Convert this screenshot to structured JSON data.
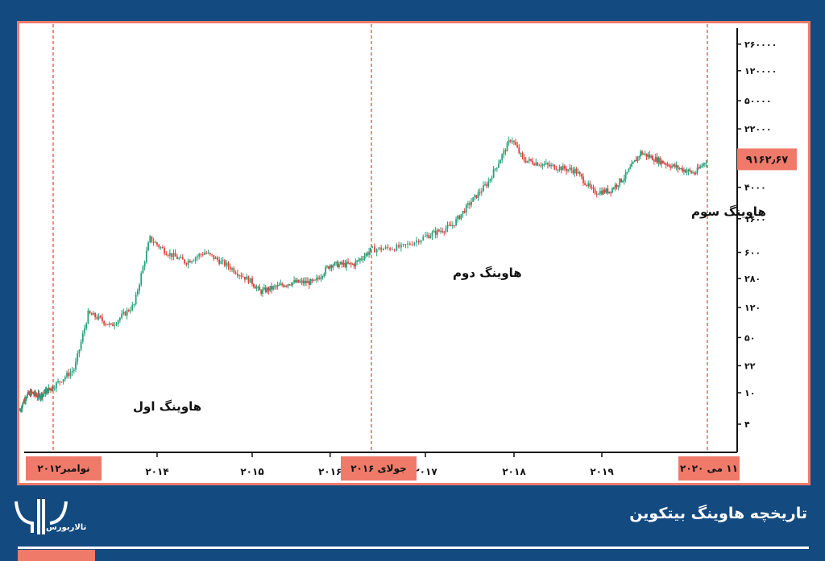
{
  "chart_data": {
    "type": "candlestick",
    "yscale": "log",
    "y_ticks": [
      "۲۶۰۰۰۰",
      "۱۲۰۰۰۰",
      "۵۰۰۰۰",
      "۲۲۰۰۰",
      "۴۰۰۰",
      "۱۶۰۰",
      "۶۰۰",
      "۲۸۰",
      "۱۲۰",
      "۵۰",
      "۲۲",
      "۱۰",
      "۴"
    ],
    "y_tick_values": [
      260000,
      120000,
      50000,
      22000,
      4000,
      1600,
      600,
      280,
      120,
      50,
      22,
      10,
      4
    ],
    "x_ticks": [
      "۲۰۱۴",
      "۲۰۱۵",
      "۲۰۱۶",
      "۲۰۱۷",
      "۲۰۱۸",
      "۲۰۱۹"
    ],
    "x_tick_values": [
      2014,
      2015,
      2016,
      2017,
      2018,
      2019
    ],
    "last_price_label": "۹۱۶۲٫۶۷",
    "last_price": 9162.67,
    "halvings": [
      {
        "date": 2012.87,
        "date_label": "نوامبر۲۰۱۲",
        "annotation": "هاوینگ اول"
      },
      {
        "date": 2016.53,
        "date_label": "جولای ۲۰۱۶",
        "annotation": "هاوینگ دوم"
      },
      {
        "date": 2020.36,
        "date_label": "۱۱ می ۲۰۲۰",
        "annotation": "هاوینگ سوم"
      }
    ],
    "series": [
      [
        2012.0,
        6
      ],
      [
        2012.15,
        9
      ],
      [
        2012.3,
        10
      ],
      [
        2012.5,
        9
      ],
      [
        2012.87,
        12
      ],
      [
        2013.1,
        20
      ],
      [
        2013.25,
        100
      ],
      [
        2013.35,
        90
      ],
      [
        2013.5,
        70
      ],
      [
        2013.75,
        130
      ],
      [
        2013.92,
        900
      ],
      [
        2014.1,
        600
      ],
      [
        2014.3,
        450
      ],
      [
        2014.5,
        600
      ],
      [
        2014.75,
        400
      ],
      [
        2015.0,
        250
      ],
      [
        2015.1,
        190
      ],
      [
        2015.5,
        250
      ],
      [
        2015.8,
        250
      ],
      [
        2016.0,
        420
      ],
      [
        2016.3,
        420
      ],
      [
        2016.53,
        650
      ],
      [
        2016.8,
        700
      ],
      [
        2017.0,
        950
      ],
      [
        2017.3,
        1300
      ],
      [
        2017.5,
        2500
      ],
      [
        2017.7,
        4500
      ],
      [
        2017.9,
        12000
      ],
      [
        2017.97,
        17000
      ],
      [
        2018.1,
        9000
      ],
      [
        2018.4,
        7500
      ],
      [
        2018.7,
        6500
      ],
      [
        2018.9,
        3500
      ],
      [
        2019.1,
        3600
      ],
      [
        2019.3,
        5500
      ],
      [
        2019.5,
        11000
      ],
      [
        2019.7,
        9000
      ],
      [
        2019.9,
        7500
      ],
      [
        2020.2,
        6000
      ],
      [
        2020.36,
        9162.67
      ]
    ],
    "colors": {
      "up": "#26a17b",
      "down": "#e0403a",
      "halving_line": "#e0403a",
      "label_bg": "#f07a6a",
      "label_text": "#8b1010"
    }
  },
  "footer": {
    "title": "تاریخچه هاوینگ بیتکوین",
    "logo_text": "تالاربورس"
  }
}
